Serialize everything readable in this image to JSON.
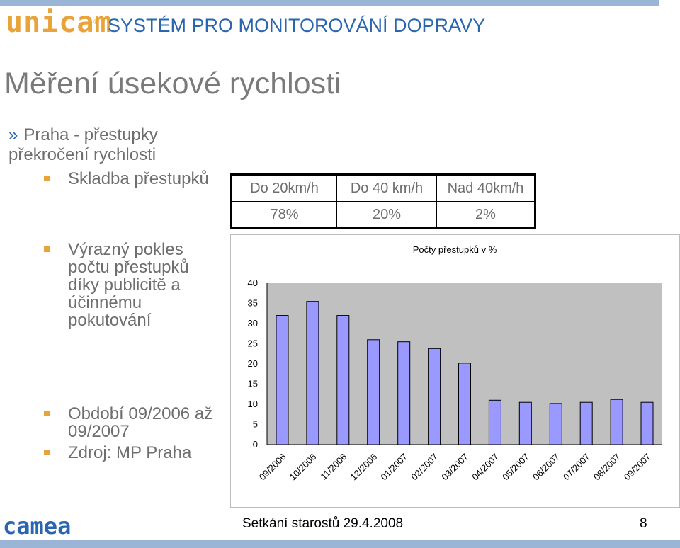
{
  "header": {
    "logo": "unicam",
    "registered": "®",
    "title": "SYSTÉM PRO MONITOROVÁNÍ DOPRAVY"
  },
  "page_title": "Měření úsekové rychlosti",
  "bullets": {
    "main_marker": "»",
    "main": "Praha - přestupky překročení rychlosti",
    "composition": "Skladba přestupků",
    "decline": "Výrazný pokles počtu přestupků díky publicitě a účinnému pokutování",
    "period": "Období 09/2006 až 09/2007",
    "source": "Zdroj: MP Praha"
  },
  "composition_table": {
    "headers": [
      "Do 20km/h",
      "Do 40 km/h",
      "Nad 40km/h"
    ],
    "values": [
      "78%",
      "20%",
      "2%"
    ]
  },
  "colors": {
    "bar_fill": "#9999ff",
    "plot_bg": "#c0c0c0",
    "accent_orange": "#e8a33a",
    "accent_blue": "#2a66b0"
  },
  "chart_data": {
    "type": "bar",
    "title": "Počty přestupků v %",
    "categories": [
      "09/2006",
      "10/2006",
      "11/2006",
      "12/2006",
      "01/2007",
      "02/2007",
      "03/2007",
      "04/2007",
      "05/2007",
      "06/2007",
      "07/2007",
      "08/2007",
      "09/2007"
    ],
    "values": [
      32,
      35.5,
      32,
      26,
      25.5,
      23.8,
      20.2,
      11,
      10.5,
      10.2,
      10.5,
      11.2,
      10.5
    ],
    "yticks": [
      0,
      5,
      10,
      15,
      20,
      25,
      30,
      35,
      40
    ],
    "ylim": [
      0,
      40
    ],
    "xlabel": "",
    "ylabel": "",
    "grid": false,
    "legend": "none"
  },
  "footer": {
    "logo": "camea",
    "text": "Setkání starostů 29.4.2008",
    "page": "8"
  }
}
